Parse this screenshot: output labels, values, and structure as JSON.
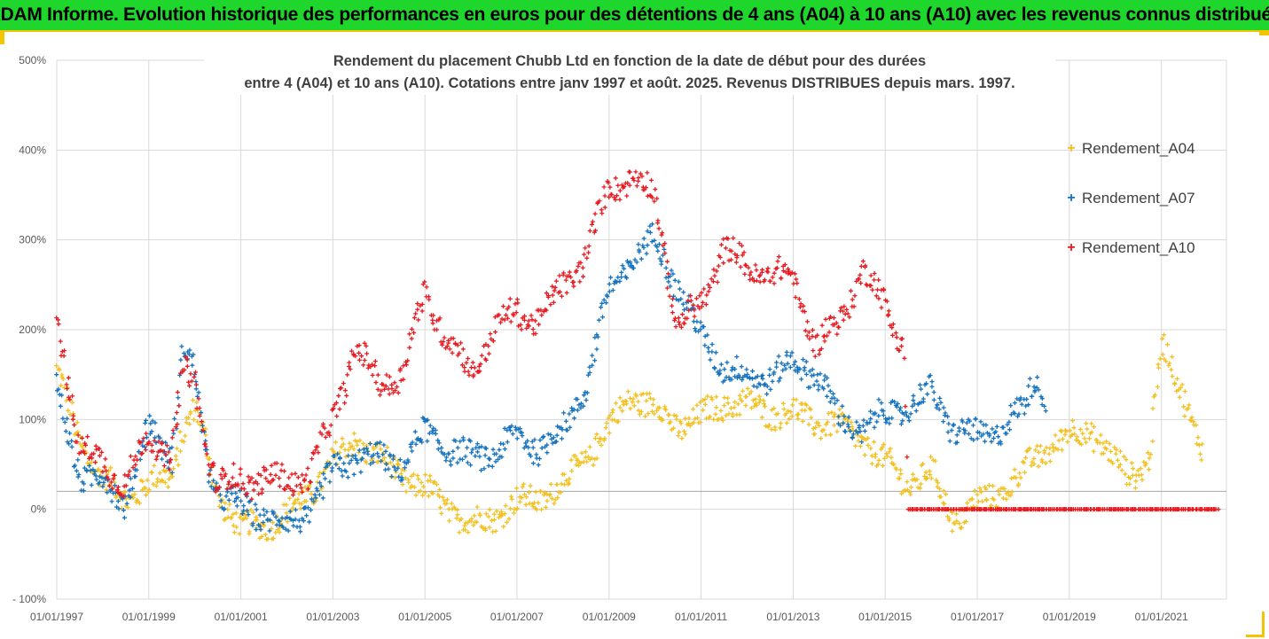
{
  "banner": {
    "title": "ADAM Informe. Evolution historique des performances en euros pour des détentions de 4 ans (A04) à 10 ans (A10) avec les revenus connus distribués"
  },
  "colors": {
    "banner_bg": "#1fd62c",
    "banner_accent": "#f3c400",
    "series_A04": "#f4c01e",
    "series_A07": "#1572bf",
    "series_A10": "#e8191f"
  },
  "chart_data": {
    "type": "scatter",
    "title_line1": "Rendement du placement Chubb Ltd en fonction de la date de début pour des durées",
    "title_line2": "entre 4 (A04) et 10 ans (A10). Cotations entre janv 1997 et août. 2025. Revenus DISTRIBUES depuis mars. 1997.",
    "xlabel": "",
    "ylabel": "",
    "marker": "+",
    "x_range": [
      "1997-01-01",
      "2022-05-01"
    ],
    "y_range": [
      -100,
      500
    ],
    "y_ticks": [
      -100,
      0,
      100,
      200,
      300,
      400,
      500
    ],
    "y_tick_labels": [
      "- 100%",
      "0%",
      "100%",
      "200%",
      "300%",
      "400%",
      "500%"
    ],
    "x_tick_labels": [
      "01/01/1997",
      "01/01/1999",
      "01/01/2001",
      "01/01/2003",
      "01/01/2005",
      "01/01/2007",
      "01/01/2009",
      "01/01/2011",
      "01/01/2013",
      "01/01/2015",
      "01/01/2017",
      "01/01/2019",
      "01/01/2021"
    ],
    "x_ticks": [
      "1997-01-01",
      "1999-01-01",
      "2001-01-01",
      "2003-01-01",
      "2005-01-01",
      "2007-01-01",
      "2009-01-01",
      "2011-01-01",
      "2013-01-01",
      "2015-01-01",
      "2017-01-01",
      "2019-01-01",
      "2021-01-01"
    ],
    "grid": true,
    "reference_line_y": 20,
    "legend_position": "right",
    "series": [
      {
        "name": "Rendement_A04",
        "color": "#f4c01e",
        "x": [
          "1997-01-01",
          "1997-07-01",
          "1998-01-01",
          "1998-07-01",
          "1999-01-01",
          "1999-07-01",
          "1999-10-01",
          "2000-01-01",
          "2000-04-01",
          "2000-07-01",
          "2001-01-01",
          "2001-07-01",
          "2002-01-01",
          "2002-07-01",
          "2003-01-01",
          "2003-07-01",
          "2004-01-01",
          "2004-07-01",
          "2005-01-01",
          "2005-07-01",
          "2006-01-01",
          "2006-07-01",
          "2007-01-01",
          "2007-07-01",
          "2008-01-01",
          "2008-07-01",
          "2009-01-01",
          "2009-07-01",
          "2010-01-01",
          "2010-07-01",
          "2011-01-01",
          "2011-07-01",
          "2012-01-01",
          "2012-07-01",
          "2013-01-01",
          "2013-07-01",
          "2014-01-01",
          "2014-07-01",
          "2015-01-01",
          "2015-07-01",
          "2016-01-01",
          "2016-07-01",
          "2017-01-01",
          "2017-07-01",
          "2018-01-01",
          "2018-07-01",
          "2019-01-01",
          "2019-07-01",
          "2020-01-01",
          "2020-04-01",
          "2020-07-01",
          "2020-10-01",
          "2021-01-01",
          "2021-07-01",
          "2021-12-01"
        ],
        "y": [
          150,
          80,
          30,
          15,
          25,
          40,
          90,
          110,
          70,
          20,
          -25,
          -15,
          -10,
          20,
          50,
          80,
          55,
          40,
          20,
          5,
          -20,
          -5,
          5,
          15,
          25,
          60,
          90,
          130,
          110,
          95,
          100,
          120,
          115,
          110,
          105,
          100,
          90,
          80,
          50,
          30,
          40,
          -10,
          5,
          20,
          40,
          70,
          80,
          90,
          50,
          40,
          45,
          60,
          180,
          130,
          55
        ]
      },
      {
        "name": "Rendement_A07",
        "color": "#1572bf",
        "x": [
          "1997-01-01",
          "1997-07-01",
          "1998-01-01",
          "1998-07-01",
          "1999-01-01",
          "1999-07-01",
          "1999-10-01",
          "2000-01-01",
          "2000-04-01",
          "2000-07-01",
          "2001-01-01",
          "2001-07-01",
          "2002-01-01",
          "2002-07-01",
          "2003-01-01",
          "2003-07-01",
          "2004-01-01",
          "2004-07-01",
          "2005-01-01",
          "2005-07-01",
          "2006-01-01",
          "2006-07-01",
          "2007-01-01",
          "2007-07-01",
          "2008-01-01",
          "2008-07-01",
          "2009-01-01",
          "2009-07-01",
          "2010-01-01",
          "2010-07-01",
          "2011-01-01",
          "2011-07-01",
          "2012-01-01",
          "2012-07-01",
          "2013-01-01",
          "2013-07-01",
          "2014-01-01",
          "2014-07-01",
          "2015-01-01",
          "2015-07-01",
          "2016-01-01",
          "2016-07-01",
          "2017-01-01",
          "2017-07-01",
          "2018-01-01",
          "2018-04-01",
          "2018-07-01"
        ],
        "y": [
          135,
          40,
          30,
          10,
          90,
          60,
          180,
          150,
          60,
          20,
          0,
          -5,
          -20,
          0,
          40,
          60,
          55,
          50,
          85,
          70,
          55,
          65,
          80,
          70,
          85,
          140,
          240,
          280,
          300,
          250,
          190,
          160,
          145,
          150,
          160,
          155,
          100,
          90,
          105,
          115,
          130,
          90,
          80,
          90,
          110,
          150,
          125
        ]
      },
      {
        "name": "Rendement_A10",
        "color": "#e8191f",
        "x": [
          "1997-01-01",
          "1997-07-01",
          "1998-01-01",
          "1998-07-01",
          "1999-01-01",
          "1999-07-01",
          "1999-10-01",
          "2000-01-01",
          "2000-04-01",
          "2000-07-01",
          "2001-01-01",
          "2001-07-01",
          "2002-01-01",
          "2002-07-01",
          "2003-01-01",
          "2003-07-01",
          "2004-01-01",
          "2004-07-01",
          "2005-01-01",
          "2005-07-01",
          "2006-01-01",
          "2006-07-01",
          "2007-01-01",
          "2007-07-01",
          "2008-01-01",
          "2008-07-01",
          "2009-01-01",
          "2009-07-01",
          "2010-01-01",
          "2010-07-01",
          "2011-01-01",
          "2011-07-01",
          "2012-01-01",
          "2012-07-01",
          "2013-01-01",
          "2013-07-01",
          "2014-01-01",
          "2014-07-01",
          "2015-01-01",
          "2015-06-01",
          "2015-07-01",
          "2016-01-01",
          "2017-01-01",
          "2018-01-01",
          "2019-01-01",
          "2020-01-01",
          "2021-01-01",
          "2022-04-01"
        ],
        "y": [
          215,
          70,
          50,
          30,
          80,
          60,
          150,
          140,
          70,
          30,
          30,
          35,
          30,
          40,
          100,
          180,
          140,
          150,
          240,
          190,
          150,
          200,
          220,
          210,
          250,
          280,
          360,
          370,
          350,
          200,
          230,
          290,
          270,
          260,
          260,
          180,
          210,
          265,
          230,
          180,
          0,
          0,
          0,
          0,
          0,
          0,
          0,
          0
        ]
      }
    ]
  }
}
